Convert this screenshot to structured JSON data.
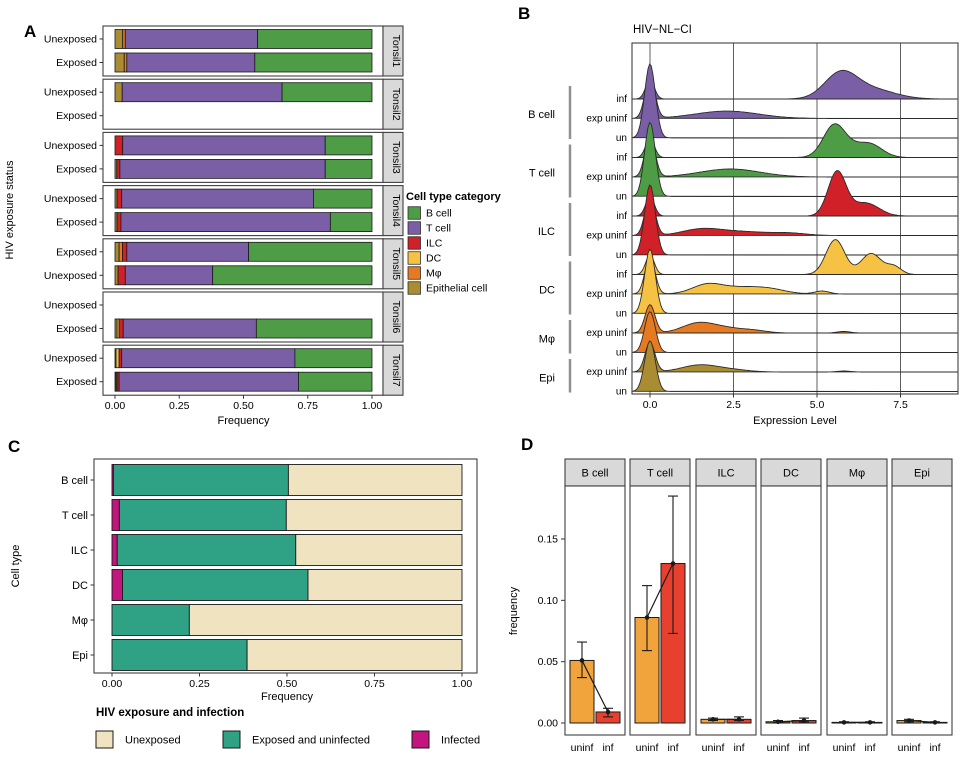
{
  "chart_data": {
    "A": {
      "type": "bar",
      "variant": "stacked-horizontal-faceted",
      "panel_label": "A",
      "xlabel": "Frequency",
      "ylabel": "HIV exposure status",
      "x_ticks": [
        0,
        0.25,
        0.5,
        0.75,
        1.0
      ],
      "x_tick_labels": [
        "0.00",
        "0.25",
        "0.50",
        "0.75",
        "1.00"
      ],
      "legend_title": "Cell type category",
      "legend_order": [
        "B cell",
        "T cell",
        "ILC",
        "DC",
        "Mφ",
        "Epithelial cell"
      ],
      "category_colors": {
        "B cell": "#4e9c45",
        "T cell": "#7b5fa6",
        "ILC": "#cf2127",
        "DC": "#f6c243",
        "Mφ": "#e57a22",
        "Epithelial cell": "#aa8c33"
      },
      "facets": [
        {
          "name": "Tonsil1",
          "rows": [
            {
              "label": "Unexposed",
              "stack": [
                [
                  "Epithelial cell",
                  0.03
                ],
                [
                  "Mφ",
                  0.01
                ],
                [
                  "T cell",
                  0.515
                ],
                [
                  "B cell",
                  0.445
                ]
              ]
            },
            {
              "label": "Exposed",
              "stack": [
                [
                  "Epithelial cell",
                  0.036
                ],
                [
                  "Mφ",
                  0.01
                ],
                [
                  "T cell",
                  0.498
                ],
                [
                  "B cell",
                  0.456
                ]
              ]
            }
          ]
        },
        {
          "name": "Tonsil2",
          "rows": [
            {
              "label": "Unexposed",
              "stack": [
                [
                  "Epithelial cell",
                  0.028
                ],
                [
                  "T cell",
                  0.622
                ],
                [
                  "B cell",
                  0.35
                ]
              ]
            },
            {
              "label": "Exposed",
              "stack": []
            }
          ]
        },
        {
          "name": "Tonsil3",
          "rows": [
            {
              "label": "Unexposed",
              "stack": [
                [
                  "ILC",
                  0.03
                ],
                [
                  "T cell",
                  0.788
                ],
                [
                  "B cell",
                  0.182
                ]
              ]
            },
            {
              "label": "Exposed",
              "stack": [
                [
                  "Epithelial cell",
                  0.007
                ],
                [
                  "ILC",
                  0.012
                ],
                [
                  "T cell",
                  0.799
                ],
                [
                  "B cell",
                  0.182
                ]
              ]
            }
          ]
        },
        {
          "name": "Tonsil4",
          "rows": [
            {
              "label": "Unexposed",
              "stack": [
                [
                  "Epithelial cell",
                  0.008
                ],
                [
                  "ILC",
                  0.018
                ],
                [
                  "T cell",
                  0.746
                ],
                [
                  "B cell",
                  0.228
                ]
              ]
            },
            {
              "label": "Exposed",
              "stack": [
                [
                  "Epithelial cell",
                  0.008
                ],
                [
                  "ILC",
                  0.015
                ],
                [
                  "T cell",
                  0.815
                ],
                [
                  "B cell",
                  0.162
                ]
              ]
            }
          ]
        },
        {
          "name": "Tonsil5",
          "rows": [
            {
              "label": "Exposed",
              "stack": [
                [
                  "Epithelial cell",
                  0.016
                ],
                [
                  "Mφ",
                  0.013
                ],
                [
                  "ILC",
                  0.017
                ],
                [
                  "T cell",
                  0.474
                ],
                [
                  "B cell",
                  0.48
                ]
              ]
            },
            {
              "label": "Unexposed",
              "stack": [
                [
                  "Epithelial cell",
                  0.012
                ],
                [
                  "ILC",
                  0.028
                ],
                [
                  "T cell",
                  0.34
                ],
                [
                  "B cell",
                  0.62
                ]
              ]
            }
          ]
        },
        {
          "name": "Tonsil6",
          "rows": [
            {
              "label": "Unexposed",
              "stack": []
            },
            {
              "label": "Exposed",
              "stack": [
                [
                  "Epithelial cell",
                  0.008
                ],
                [
                  "DC",
                  0.008
                ],
                [
                  "ILC",
                  0.016
                ],
                [
                  "T cell",
                  0.518
                ],
                [
                  "B cell",
                  0.45
                ]
              ]
            }
          ]
        },
        {
          "name": "Tonsil7",
          "rows": [
            {
              "label": "Unexposed",
              "stack": [
                [
                  "Epithelial cell",
                  0.004
                ],
                [
                  "DC",
                  0.012
                ],
                [
                  "ILC",
                  0.01
                ],
                [
                  "T cell",
                  0.674
                ],
                [
                  "B cell",
                  0.3
                ]
              ]
            },
            {
              "label": "Exposed",
              "stack": [
                [
                  "Epithelial cell",
                  0.004
                ],
                [
                  "DC",
                  0.004
                ],
                [
                  "ILC",
                  0.008
                ],
                [
                  "T cell",
                  0.698
                ],
                [
                  "B cell",
                  0.286
                ]
              ]
            }
          ]
        }
      ]
    },
    "B": {
      "type": "area",
      "variant": "ridgeline",
      "panel_label": "B",
      "title": "HIV−NL−CI",
      "xlabel": "Expression Level",
      "x_ticks": [
        0,
        2.5,
        5,
        7.5
      ],
      "x_tick_labels": [
        "0.0",
        "2.5",
        "5.0",
        "7.5"
      ],
      "xlim": [
        -0.54,
        9.2
      ],
      "groups": [
        {
          "name": "B cell",
          "conds": [
            "inf",
            "exp uninf",
            "un"
          ]
        },
        {
          "name": "T cell",
          "conds": [
            "inf",
            "exp uninf",
            "un"
          ]
        },
        {
          "name": "ILC",
          "conds": [
            "inf",
            "exp uninf",
            "un"
          ]
        },
        {
          "name": "DC",
          "conds": [
            "inf",
            "exp uninf",
            "un"
          ]
        },
        {
          "name": "Mφ",
          "conds": [
            "exp uninf",
            "un"
          ]
        },
        {
          "name": "Epi",
          "conds": [
            "exp uninf",
            "un"
          ]
        }
      ],
      "group_colors": {
        "B cell": "#7b5fa6",
        "T cell": "#4e9c45",
        "ILC": "#cf2127",
        "DC": "#f6c243",
        "Mφ": "#e57a22",
        "Epi": "#aa8c33"
      },
      "rows": [
        {
          "group": "B cell",
          "cond": "inf",
          "bumps": [
            [
              0,
              0.13,
              1.0
            ],
            [
              5.7,
              0.48,
              1.23
            ],
            [
              6.6,
              0.7,
              0.51
            ]
          ]
        },
        {
          "group": "B cell",
          "cond": "exp uninf",
          "bumps": [
            [
              0,
              0.15,
              2.15
            ],
            [
              2.3,
              0.95,
              0.38
            ]
          ]
        },
        {
          "group": "B cell",
          "cond": "un",
          "bumps": [
            [
              0,
              0.16,
              3.8
            ]
          ]
        },
        {
          "group": "T cell",
          "cond": "inf",
          "bumps": [
            [
              0,
              0.13,
              1.0
            ],
            [
              5.5,
              0.32,
              1.44
            ],
            [
              6.05,
              0.5,
              0.51
            ],
            [
              6.65,
              0.35,
              0.46
            ]
          ]
        },
        {
          "group": "T cell",
          "cond": "exp uninf",
          "bumps": [
            [
              0,
              0.15,
              2.15
            ],
            [
              2.4,
              0.9,
              0.41
            ]
          ]
        },
        {
          "group": "T cell",
          "cond": "un",
          "bumps": [
            [
              0,
              0.16,
              3.8
            ]
          ]
        },
        {
          "group": "ILC",
          "cond": "inf",
          "bumps": [
            [
              0,
              0.13,
              1.0
            ],
            [
              5.6,
              0.27,
              2.26
            ],
            [
              6.45,
              0.4,
              0.67
            ]
          ]
        },
        {
          "group": "ILC",
          "cond": "exp uninf",
          "bumps": [
            [
              0,
              0.15,
              2.0
            ],
            [
              1.5,
              0.55,
              0.26
            ],
            [
              2.6,
              0.9,
              0.21
            ],
            [
              4.2,
              0.5,
              0.1
            ]
          ]
        },
        {
          "group": "ILC",
          "cond": "un",
          "bumps": [
            [
              0,
              0.16,
              3.6
            ]
          ]
        },
        {
          "group": "DC",
          "cond": "inf",
          "bumps": [
            [
              0,
              0.13,
              1.0
            ],
            [
              5.55,
              0.28,
              1.79
            ],
            [
              6.62,
              0.3,
              1.08
            ],
            [
              7.3,
              0.22,
              0.41
            ]
          ]
        },
        {
          "group": "DC",
          "cond": "exp uninf",
          "bumps": [
            [
              0,
              0.15,
              1.9
            ],
            [
              1.7,
              0.45,
              0.46
            ],
            [
              2.7,
              0.6,
              0.31
            ],
            [
              3.6,
              0.5,
              0.21
            ],
            [
              5.15,
              0.22,
              0.15
            ]
          ]
        },
        {
          "group": "DC",
          "cond": "un",
          "bumps": [
            [
              0,
              0.16,
              3.3
            ]
          ]
        },
        {
          "group": "Mφ",
          "cond": "exp uninf",
          "bumps": [
            [
              0,
              0.15,
              1.45
            ],
            [
              1.45,
              0.48,
              0.51
            ],
            [
              2.3,
              0.45,
              0.21
            ],
            [
              3.1,
              0.4,
              0.13
            ],
            [
              5.8,
              0.2,
              0.08
            ]
          ]
        },
        {
          "group": "Mφ",
          "cond": "un",
          "bumps": [
            [
              0,
              0.16,
              2.1
            ]
          ]
        },
        {
          "group": "Epi",
          "cond": "exp uninf",
          "bumps": [
            [
              0,
              0.15,
              1.5
            ],
            [
              1.5,
              0.55,
              0.36
            ],
            [
              2.5,
              0.5,
              0.1
            ],
            [
              5.8,
              0.2,
              0.05
            ]
          ]
        },
        {
          "group": "Epi",
          "cond": "un",
          "bumps": [
            [
              0,
              0.16,
              2.6
            ]
          ]
        }
      ]
    },
    "C": {
      "type": "bar",
      "variant": "stacked-horizontal",
      "panel_label": "C",
      "xlabel": "Frequency",
      "ylabel": "Cell type",
      "x_ticks": [
        0,
        0.25,
        0.5,
        0.75,
        1.0
      ],
      "x_tick_labels": [
        "0.00",
        "0.25",
        "0.50",
        "0.75",
        "1.00"
      ],
      "legend_title": "HIV exposure and infection",
      "legend_order": [
        "Unexposed",
        "Exposed and uninfected",
        "Infected"
      ],
      "series_colors": {
        "Unexposed": "#f0e3c0",
        "Exposed and uninfected": "#2fa286",
        "Infected": "#c4147e"
      },
      "categories": [
        "B cell",
        "T cell",
        "ILC",
        "DC",
        "Mφ",
        "Epi"
      ],
      "stacks": [
        [
          [
            "Infected",
            0.004
          ],
          [
            "Exposed and uninfected",
            0.5
          ],
          [
            "Unexposed",
            0.496
          ]
        ],
        [
          [
            "Infected",
            0.021
          ],
          [
            "Exposed and uninfected",
            0.477
          ],
          [
            "Unexposed",
            0.502
          ]
        ],
        [
          [
            "Infected",
            0.015
          ],
          [
            "Exposed and uninfected",
            0.51
          ],
          [
            "Unexposed",
            0.475
          ]
        ],
        [
          [
            "Infected",
            0.03
          ],
          [
            "Exposed and uninfected",
            0.53
          ],
          [
            "Unexposed",
            0.44
          ]
        ],
        [
          [
            "Infected",
            0.0
          ],
          [
            "Exposed and uninfected",
            0.221
          ],
          [
            "Unexposed",
            0.779
          ]
        ],
        [
          [
            "Infected",
            0.0
          ],
          [
            "Exposed and uninfected",
            0.386
          ],
          [
            "Unexposed",
            0.614
          ]
        ]
      ]
    },
    "D": {
      "type": "bar",
      "variant": "faceted-vertical-errorbars",
      "panel_label": "D",
      "ylabel": "frequency",
      "y_ticks": [
        0,
        0.05,
        0.1,
        0.15
      ],
      "y_tick_labels": [
        "0.00",
        "0.05",
        "0.10",
        "0.15"
      ],
      "ylim": [
        0,
        0.192
      ],
      "bar_colors": {
        "uninf": "#f2a43c",
        "inf": "#e8402f"
      },
      "facets": [
        {
          "name": "B cell",
          "bars": [
            {
              "label": "uninf",
              "value": 0.051,
              "lo": 0.037,
              "hi": 0.066
            },
            {
              "label": "inf",
              "value": 0.009,
              "lo": 0.005,
              "hi": 0.012
            }
          ]
        },
        {
          "name": "T cell",
          "bars": [
            {
              "label": "uninf",
              "value": 0.086,
              "lo": 0.059,
              "hi": 0.112
            },
            {
              "label": "inf",
              "value": 0.13,
              "lo": 0.073,
              "hi": 0.185
            }
          ]
        },
        {
          "name": "ILC",
          "bars": [
            {
              "label": "uninf",
              "value": 0.003,
              "lo": 0.002,
              "hi": 0.004
            },
            {
              "label": "inf",
              "value": 0.003,
              "lo": 0.002,
              "hi": 0.005
            }
          ]
        },
        {
          "name": "DC",
          "bars": [
            {
              "label": "uninf",
              "value": 0.001,
              "lo": 0.0005,
              "hi": 0.002
            },
            {
              "label": "inf",
              "value": 0.002,
              "lo": 0.001,
              "hi": 0.004
            }
          ]
        },
        {
          "name": "Mφ",
          "bars": [
            {
              "label": "uninf",
              "value": 0.0005,
              "lo": 0.0,
              "hi": 0.001
            },
            {
              "label": "inf",
              "value": 0.0005,
              "lo": 0.0,
              "hi": 0.001
            }
          ]
        },
        {
          "name": "Epi",
          "bars": [
            {
              "label": "uninf",
              "value": 0.002,
              "lo": 0.001,
              "hi": 0.003
            },
            {
              "label": "inf",
              "value": 0.0005,
              "lo": 0.0,
              "hi": 0.001
            }
          ]
        }
      ]
    }
  },
  "style": {
    "panel_border": "#3f3f3f",
    "strip_fill": "#d9d9d9",
    "gridline": "#5f5f5f",
    "outline": "#1a1a1a",
    "bracket": "#909090",
    "background": "#ffffff"
  }
}
